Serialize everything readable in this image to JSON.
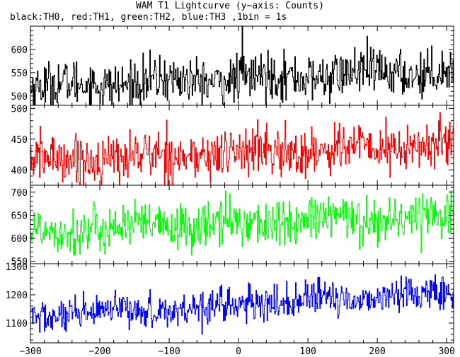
{
  "chart_data": {
    "type": "line",
    "title": "WAM T1 Lightcurve (y−axis: Counts)",
    "subtitle": "black:TH0, red:TH1, green:TH2, blue:TH3 ,1bin = 1s",
    "x_range": [
      -300,
      310
    ],
    "x_ticks": [
      -300,
      -200,
      -100,
      0,
      100,
      200,
      300
    ],
    "x_tick_labels": [
      "−300",
      "−200",
      "−100",
      "0",
      "100",
      "200",
      "300"
    ],
    "bin_width_s": 1,
    "panels": [
      {
        "series": "TH0",
        "color": "#000000",
        "ylim": [
          480,
          650
        ],
        "y_ticks": [
          500,
          550,
          600
        ],
        "start_level": 520,
        "end_level": 555,
        "noise_sigma": 25,
        "spike": {
          "x": 5,
          "value": 650
        }
      },
      {
        "series": "TH1",
        "color": "#ff0000",
        "ylim": [
          375,
          505
        ],
        "y_ticks": [
          400,
          450,
          500
        ],
        "start_level": 415,
        "end_level": 440,
        "noise_sigma": 20
      },
      {
        "series": "TH2",
        "color": "#00ff00",
        "ylim": [
          545,
          715
        ],
        "y_ticks": [
          550,
          600,
          650,
          700
        ],
        "start_level": 615,
        "end_level": 650,
        "noise_sigma": 25
      },
      {
        "series": "TH3",
        "color": "#0000ff",
        "ylim": [
          1030,
          1310
        ],
        "y_ticks": [
          1100,
          1200,
          1300
        ],
        "start_level": 1120,
        "end_level": 1210,
        "noise_sigma": 30
      }
    ]
  }
}
